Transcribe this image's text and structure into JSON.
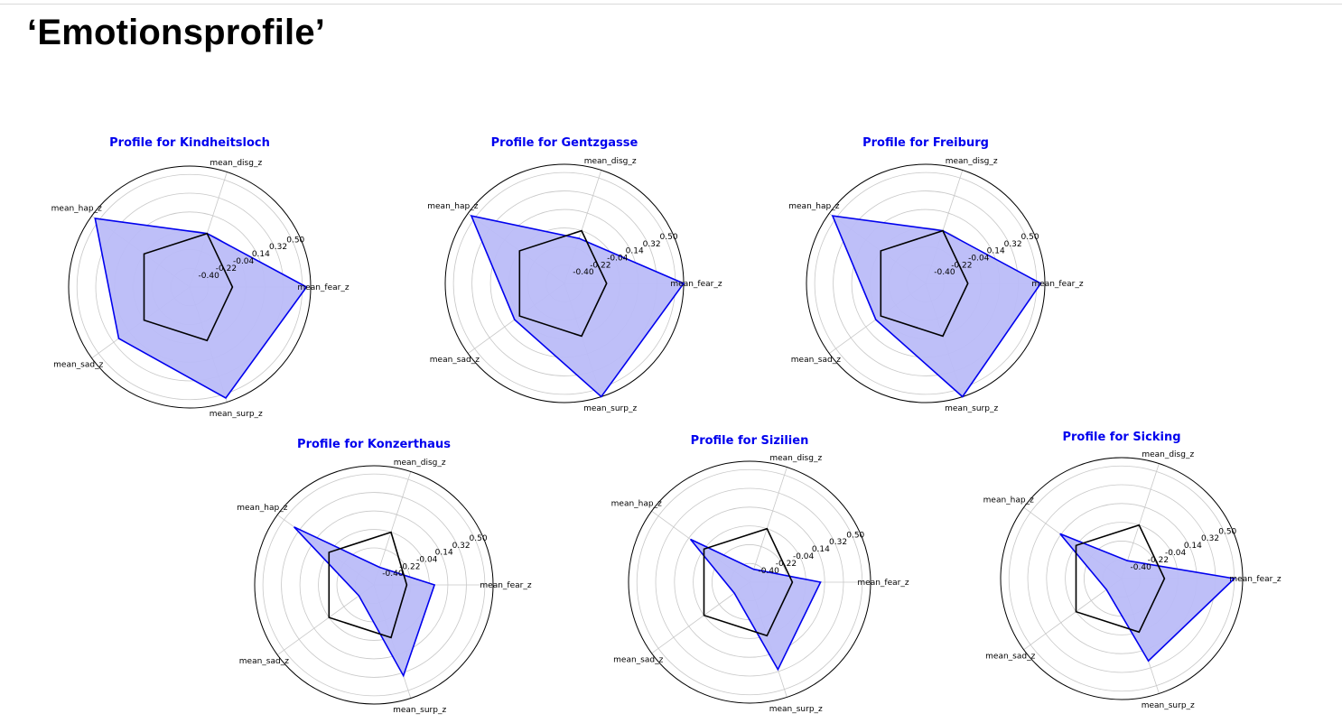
{
  "page": {
    "title": "‘Emotionsprofile’"
  },
  "colors": {
    "series_fill": "#bbbcf8",
    "series_stroke": "#0000ee",
    "baseline_stroke": "#000000",
    "title": "#0000ee",
    "grid": "#c8c8c8"
  },
  "chart_data": [
    {
      "type": "radar",
      "title": "Profile for Kindheitsloch",
      "axes": [
        "mean_fear_z",
        "mean_disg_z",
        "mean_hap_z",
        "mean_sad_z",
        "mean_surp_z"
      ],
      "rlim": [
        -0.58,
        0.58
      ],
      "ticks": [
        -0.4,
        -0.22,
        -0.04,
        0.14,
        0.32,
        0.5
      ],
      "tick_labels": [
        "-0.40",
        "-0.22",
        "-0.04",
        "0.14",
        "0.32",
        "0.50"
      ],
      "grid": true,
      "series": [
        {
          "values": [
            0.54,
            -0.04,
            0.54,
            0.26,
            0.54
          ]
        },
        {
          "values": [
            -0.17,
            -0.04,
            -0.04,
            -0.04,
            -0.04
          ]
        }
      ]
    },
    {
      "type": "radar",
      "title": "Profile for Gentzgasse",
      "axes": [
        "mean_fear_z",
        "mean_disg_z",
        "mean_hap_z",
        "mean_sad_z",
        "mean_surp_z"
      ],
      "rlim": [
        -0.58,
        0.58
      ],
      "ticks": [
        -0.4,
        -0.22,
        -0.04,
        0.14,
        0.32,
        0.5
      ],
      "tick_labels": [
        "-0.40",
        "-0.22",
        "-0.04",
        "0.14",
        "0.32",
        "0.50"
      ],
      "grid": true,
      "series": [
        {
          "values": [
            0.58,
            -0.12,
            0.54,
            0.02,
            0.58
          ]
        },
        {
          "values": [
            -0.17,
            -0.04,
            -0.04,
            -0.04,
            -0.04
          ]
        }
      ]
    },
    {
      "type": "radar",
      "title": "Profile for Freiburg",
      "axes": [
        "mean_fear_z",
        "mean_disg_z",
        "mean_hap_z",
        "mean_sad_z",
        "mean_surp_z"
      ],
      "rlim": [
        -0.58,
        0.58
      ],
      "ticks": [
        -0.4,
        -0.22,
        -0.04,
        0.14,
        0.32,
        0.5
      ],
      "tick_labels": [
        "-0.40",
        "-0.22",
        "-0.04",
        "0.14",
        "0.32",
        "0.50"
      ],
      "grid": true,
      "series": [
        {
          "values": [
            0.54,
            -0.04,
            0.54,
            0.02,
            0.58
          ]
        },
        {
          "values": [
            -0.17,
            -0.04,
            -0.04,
            -0.04,
            -0.04
          ]
        }
      ]
    },
    {
      "type": "radar",
      "title": "Profile for Konzerthaus",
      "axes": [
        "mean_fear_z",
        "mean_disg_z",
        "mean_hap_z",
        "mean_sad_z",
        "mean_surp_z"
      ],
      "rlim": [
        -0.58,
        0.58
      ],
      "ticks": [
        -0.4,
        -0.22,
        -0.04,
        0.14,
        0.32,
        0.5
      ],
      "tick_labels": [
        "-0.40",
        "-0.22",
        "-0.04",
        "0.14",
        "0.32",
        "0.50"
      ],
      "grid": true,
      "series": [
        {
          "values": [
            0.01,
            -0.4,
            0.38,
            -0.4,
            0.35
          ]
        },
        {
          "values": [
            -0.26,
            -0.04,
            -0.04,
            -0.04,
            -0.04
          ]
        }
      ]
    },
    {
      "type": "radar",
      "title": "Profile for Sizilien",
      "axes": [
        "mean_fear_z",
        "mean_disg_z",
        "mean_hap_z",
        "mean_sad_z",
        "mean_surp_z"
      ],
      "rlim": [
        -0.58,
        0.58
      ],
      "ticks": [
        -0.4,
        -0.22,
        -0.04,
        0.14,
        0.32,
        0.5
      ],
      "tick_labels": [
        "-0.40",
        "-0.22",
        "-0.04",
        "0.14",
        "0.32",
        "0.50"
      ],
      "grid": true,
      "series": [
        {
          "values": [
            0.1,
            -0.45,
            0.12,
            -0.4,
            0.3
          ]
        },
        {
          "values": [
            -0.17,
            -0.04,
            -0.04,
            -0.04,
            -0.04
          ]
        }
      ]
    },
    {
      "type": "radar",
      "title": "Profile for Sicking",
      "axes": [
        "mean_fear_z",
        "mean_disg_z",
        "mean_hap_z",
        "mean_sad_z",
        "mean_surp_z"
      ],
      "rlim": [
        -0.58,
        0.58
      ],
      "ticks": [
        -0.4,
        -0.22,
        -0.04,
        0.14,
        0.32,
        0.5
      ],
      "tick_labels": [
        "-0.40",
        "-0.22",
        "-0.04",
        "0.14",
        "0.32",
        "0.50"
      ],
      "grid": true,
      "series": [
        {
          "values": [
            0.5,
            -0.4,
            0.15,
            -0.4,
            0.25
          ]
        },
        {
          "values": [
            -0.17,
            -0.04,
            -0.04,
            -0.04,
            -0.04
          ]
        }
      ]
    }
  ]
}
